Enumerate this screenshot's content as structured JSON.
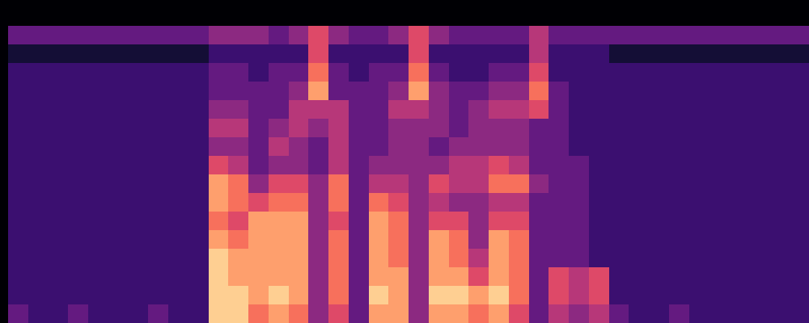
{
  "chart_data": {
    "type": "heatmap",
    "tick_labels": false,
    "zlim": [
      0,
      10
    ],
    "z": [
      [
        3,
        3,
        3,
        3,
        3,
        3,
        3,
        3,
        3,
        3,
        4,
        4,
        4,
        3,
        4,
        6,
        4,
        3,
        3,
        4,
        6,
        4,
        3,
        3,
        3,
        3,
        5,
        3,
        3,
        3,
        3,
        3,
        3,
        3,
        3,
        3,
        3,
        3,
        3,
        3
      ],
      [
        1,
        1,
        1,
        1,
        1,
        1,
        1,
        1,
        1,
        1,
        2,
        2,
        2,
        2,
        2,
        6,
        2,
        2,
        2,
        2,
        6,
        2,
        2,
        2,
        2,
        2,
        5,
        2,
        2,
        2,
        1,
        1,
        1,
        1,
        1,
        1,
        1,
        1,
        1,
        1
      ],
      [
        2,
        2,
        2,
        2,
        2,
        2,
        2,
        2,
        2,
        2,
        3,
        3,
        2,
        3,
        3,
        7,
        3,
        2,
        3,
        3,
        7,
        3,
        2,
        2,
        3,
        3,
        6,
        2,
        2,
        2,
        2,
        2,
        2,
        2,
        2,
        2,
        2,
        2,
        2,
        2
      ],
      [
        2,
        2,
        2,
        2,
        2,
        2,
        2,
        2,
        2,
        2,
        3,
        3,
        3,
        3,
        4,
        8,
        3,
        3,
        3,
        4,
        8,
        4,
        3,
        3,
        4,
        4,
        7,
        3,
        2,
        2,
        2,
        2,
        2,
        2,
        2,
        2,
        2,
        2,
        2,
        2
      ],
      [
        2,
        2,
        2,
        2,
        2,
        2,
        2,
        2,
        2,
        2,
        4,
        4,
        3,
        3,
        5,
        5,
        5,
        3,
        3,
        5,
        5,
        4,
        3,
        4,
        5,
        5,
        6,
        3,
        2,
        2,
        2,
        2,
        2,
        2,
        2,
        2,
        2,
        2,
        2,
        2
      ],
      [
        2,
        2,
        2,
        2,
        2,
        2,
        2,
        2,
        2,
        2,
        5,
        5,
        3,
        4,
        5,
        4,
        5,
        3,
        3,
        4,
        4,
        4,
        3,
        4,
        4,
        4,
        3,
        3,
        2,
        2,
        2,
        2,
        2,
        2,
        2,
        2,
        2,
        2,
        2,
        2
      ],
      [
        2,
        2,
        2,
        2,
        2,
        2,
        2,
        2,
        2,
        2,
        4,
        4,
        3,
        5,
        4,
        3,
        5,
        3,
        3,
        4,
        4,
        3,
        4,
        4,
        4,
        4,
        3,
        3,
        2,
        2,
        2,
        2,
        2,
        2,
        2,
        2,
        2,
        2,
        2,
        2
      ],
      [
        2,
        2,
        2,
        2,
        2,
        2,
        2,
        2,
        2,
        2,
        6,
        5,
        3,
        4,
        4,
        3,
        5,
        3,
        4,
        4,
        4,
        4,
        5,
        5,
        6,
        5,
        3,
        3,
        3,
        2,
        2,
        2,
        2,
        2,
        2,
        2,
        2,
        2,
        2,
        2
      ],
      [
        2,
        2,
        2,
        2,
        2,
        2,
        2,
        2,
        2,
        2,
        8,
        7,
        4,
        6,
        6,
        4,
        7,
        3,
        5,
        5,
        4,
        6,
        5,
        5,
        7,
        7,
        4,
        3,
        3,
        2,
        2,
        2,
        2,
        2,
        2,
        2,
        2,
        2,
        2,
        2
      ],
      [
        2,
        2,
        2,
        2,
        2,
        2,
        2,
        2,
        2,
        2,
        8,
        7,
        6,
        7,
        7,
        4,
        7,
        3,
        7,
        6,
        4,
        5,
        4,
        4,
        5,
        5,
        3,
        3,
        3,
        2,
        2,
        2,
        2,
        2,
        2,
        2,
        2,
        2,
        2,
        2
      ],
      [
        2,
        2,
        2,
        2,
        2,
        2,
        2,
        2,
        2,
        2,
        7,
        6,
        8,
        8,
        8,
        4,
        6,
        3,
        8,
        7,
        4,
        6,
        6,
        4,
        6,
        6,
        3,
        3,
        3,
        2,
        2,
        2,
        2,
        2,
        2,
        2,
        2,
        2,
        2,
        2
      ],
      [
        2,
        2,
        2,
        2,
        2,
        2,
        2,
        2,
        2,
        2,
        8,
        7,
        8,
        8,
        8,
        4,
        7,
        3,
        8,
        7,
        4,
        8,
        7,
        4,
        8,
        7,
        3,
        3,
        3,
        2,
        2,
        2,
        2,
        2,
        2,
        2,
        2,
        2,
        2,
        2
      ],
      [
        2,
        2,
        2,
        2,
        2,
        2,
        2,
        2,
        2,
        2,
        9,
        8,
        8,
        8,
        8,
        4,
        7,
        3,
        8,
        7,
        4,
        8,
        7,
        5,
        8,
        7,
        3,
        3,
        3,
        2,
        2,
        2,
        2,
        2,
        2,
        2,
        2,
        2,
        2,
        2
      ],
      [
        2,
        2,
        2,
        2,
        2,
        2,
        2,
        2,
        2,
        2,
        9,
        8,
        8,
        8,
        8,
        4,
        7,
        3,
        8,
        8,
        4,
        8,
        8,
        6,
        8,
        7,
        3,
        6,
        5,
        6,
        2,
        2,
        2,
        2,
        2,
        2,
        2,
        2,
        2,
        2
      ],
      [
        2,
        2,
        2,
        2,
        2,
        2,
        2,
        2,
        2,
        2,
        9,
        9,
        8,
        9,
        8,
        4,
        7,
        3,
        9,
        8,
        4,
        9,
        9,
        8,
        9,
        7,
        3,
        6,
        5,
        6,
        2,
        2,
        2,
        2,
        2,
        2,
        2,
        2,
        2,
        2
      ],
      [
        3,
        2,
        2,
        3,
        2,
        2,
        2,
        3,
        2,
        2,
        9,
        9,
        7,
        8,
        7,
        4,
        6,
        3,
        8,
        8,
        4,
        8,
        8,
        7,
        8,
        6,
        3,
        5,
        4,
        5,
        3,
        2,
        2,
        3,
        2,
        2,
        2,
        2,
        2,
        2
      ]
    ]
  }
}
